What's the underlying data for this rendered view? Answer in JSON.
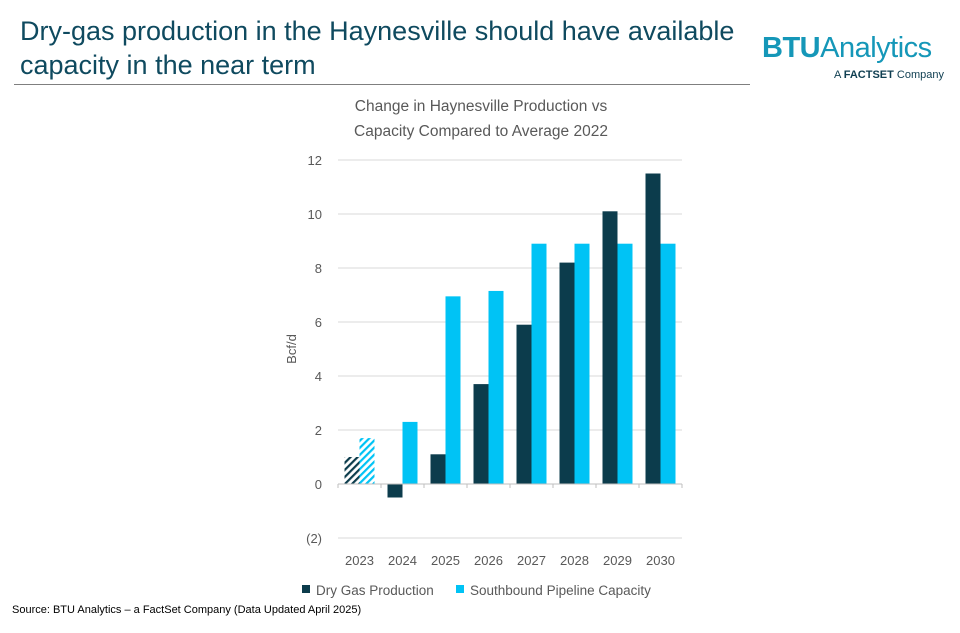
{
  "slide": {
    "title": "Dry-gas production in the Haynesville should have available capacity in the near term",
    "source": "Source: BTU Analytics – a FactSet Company (Data Updated April 2025)"
  },
  "logo": {
    "main_bold": "BTU",
    "main_rest": "Analytics",
    "sub_prefix": "A ",
    "sub_brand": "FACTSET",
    "sub_suffix": " Company"
  },
  "colors": {
    "title": "#0f4a5f",
    "dry_gas": "#0c3c4c",
    "pipeline": "#00c3f5",
    "grid": "#d9d9d9",
    "text": "#595959"
  },
  "chart_data": {
    "type": "bar",
    "title": [
      "Change in Haynesville Production vs",
      "Capacity Compared to Average 2022"
    ],
    "ylabel": "Bcf/d",
    "xlabel": "",
    "categories": [
      "2023",
      "2024",
      "2025",
      "2026",
      "2027",
      "2028",
      "2029",
      "2030"
    ],
    "series": [
      {
        "name": "Dry Gas Production",
        "values": [
          1.0,
          -0.5,
          1.1,
          3.7,
          5.9,
          8.2,
          10.1,
          11.5
        ],
        "hatched_categories": [
          "2023"
        ]
      },
      {
        "name": "Southbound Pipeline Capacity",
        "values": [
          1.7,
          2.3,
          6.95,
          7.15,
          8.9,
          8.9,
          8.9,
          8.9
        ],
        "hatched_categories": [
          "2023"
        ]
      }
    ],
    "ylim": [
      -2,
      12
    ],
    "yticks": [
      -2,
      0,
      2,
      4,
      6,
      8,
      10,
      12
    ],
    "ytick_labels": [
      "(2)",
      "0",
      "2",
      "4",
      "6",
      "8",
      "10",
      "12"
    ],
    "grid": true,
    "legend_position": "bottom"
  }
}
